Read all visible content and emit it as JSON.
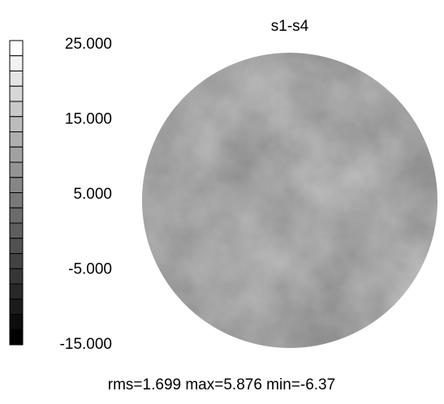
{
  "chart_data": {
    "type": "surface-map",
    "title": "s1-s4",
    "clim": [
      -15,
      25
    ],
    "cticks": [
      {
        "value": 25,
        "label": "25.000"
      },
      {
        "value": 15,
        "label": "15.000"
      },
      {
        "value": 5,
        "label": "5.000"
      },
      {
        "value": -5,
        "label": "-5.000"
      },
      {
        "value": -15,
        "label": "-15.000"
      }
    ],
    "footer": "rms=1.699 max=5.876 min=-6.37"
  }
}
